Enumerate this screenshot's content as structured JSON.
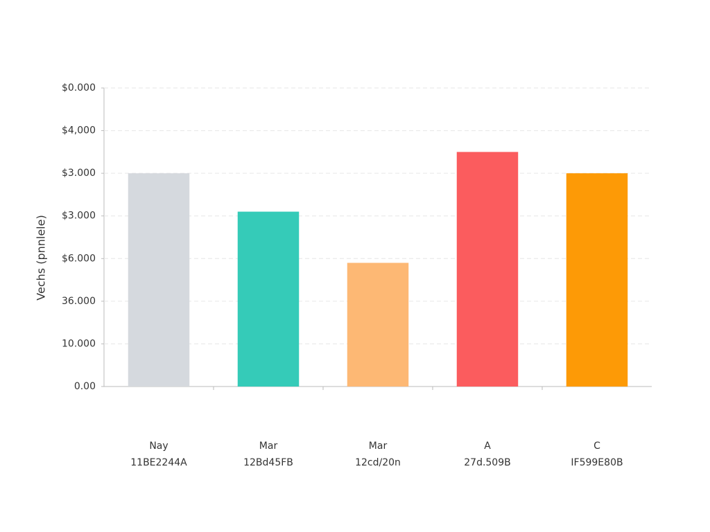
{
  "chart_data": {
    "type": "bar",
    "y_label": "Vechs (pnnlele)",
    "categories": [
      "Nay",
      "Mar",
      "Mar",
      "A",
      "C"
    ],
    "category_codes": [
      "11BE2244A",
      "12Bd45FB",
      "12cd/20n",
      "27d.509B",
      "IF599E80B"
    ],
    "values": [
      5.0,
      4.1,
      2.9,
      5.5,
      5.0
    ],
    "colors": [
      "#d5d9de",
      "#35cbb8",
      "#fdb874",
      "#fb5c5e",
      "#fd9a06"
    ],
    "ylim": [
      0,
      7
    ],
    "yticks": [
      {
        "value": 0,
        "label": "0.00"
      },
      {
        "value": 1,
        "label": "10.000"
      },
      {
        "value": 2,
        "label": "36.000"
      },
      {
        "value": 3,
        "label": "$6.000"
      },
      {
        "value": 4,
        "label": "$3.000"
      },
      {
        "value": 5,
        "label": "$3.000"
      },
      {
        "value": 6,
        "label": "$4,000"
      },
      {
        "value": 7,
        "label": "$0.000"
      }
    ],
    "grid": true
  }
}
